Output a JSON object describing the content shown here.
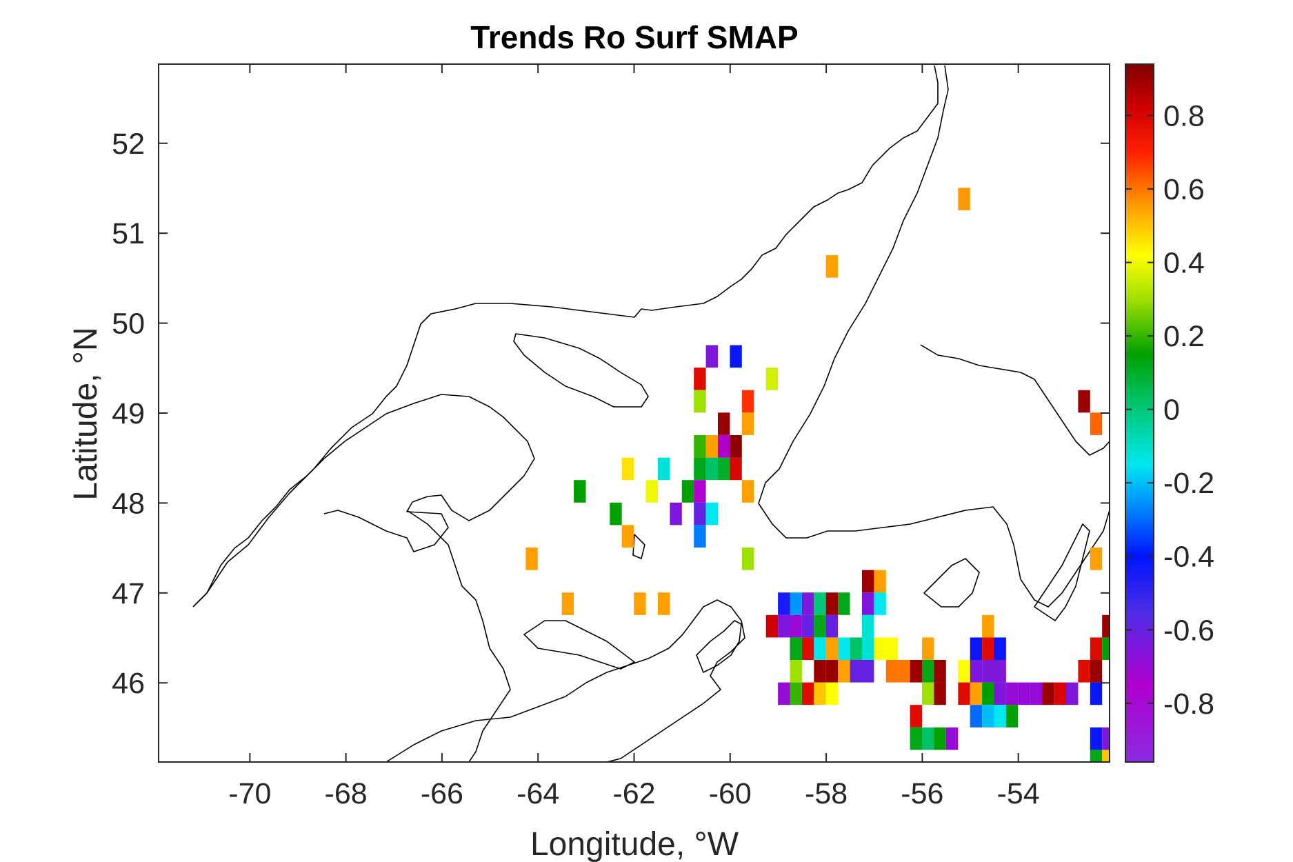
{
  "title": "Trends Ro Surf SMAP",
  "xlabel": "Longitude, °W",
  "ylabel": "Latitude, °N",
  "x_ticks": [
    "-70",
    "-68",
    "-66",
    "-64",
    "-62",
    "-60",
    "-58",
    "-56",
    "-54"
  ],
  "y_ticks": [
    "46",
    "47",
    "48",
    "49",
    "50",
    "51",
    "52"
  ],
  "colorbar_ticks": [
    "0.8",
    "0.6",
    "0.4",
    "0.2",
    "0",
    "-0.2",
    "-0.4",
    "-0.6",
    "-0.8"
  ],
  "chart_data": {
    "type": "heatmap",
    "title": "Trends Ro Surf SMAP",
    "xlabel": "Longitude, °W",
    "ylabel": "Latitude, °N",
    "xlim": [
      -71.9,
      -52.1
    ],
    "ylim": [
      45.12,
      52.88
    ],
    "grid": false,
    "colormap": "jet-like (purple to dark red)",
    "clim": [
      -0.96,
      0.94
    ],
    "colorbar_ticks": [
      0.8,
      0.6,
      0.4,
      0.2,
      0,
      -0.2,
      -0.4,
      -0.6,
      -0.8
    ],
    "colorbar": [
      {
        "v": -0.96,
        "c": "#8a2be2"
      },
      {
        "v": -0.75,
        "c": "#b000d0"
      },
      {
        "v": -0.55,
        "c": "#4b2ce6"
      },
      {
        "v": -0.4,
        "c": "#0014ff"
      },
      {
        "v": -0.25,
        "c": "#0096ff"
      },
      {
        "v": -0.15,
        "c": "#00e8ee"
      },
      {
        "v": 0.0,
        "c": "#00c878"
      },
      {
        "v": 0.15,
        "c": "#00a000"
      },
      {
        "v": 0.3,
        "c": "#a0e000"
      },
      {
        "v": 0.42,
        "c": "#ffff00"
      },
      {
        "v": 0.55,
        "c": "#ffa000"
      },
      {
        "v": 0.7,
        "c": "#ff2000"
      },
      {
        "v": 0.82,
        "c": "#d00000"
      },
      {
        "v": 0.94,
        "c": "#800000"
      }
    ],
    "cell_size_deg": {
      "lon": 0.25,
      "lat": 0.25
    },
    "cells": [
      {
        "lon": -55.13,
        "lat": 51.38,
        "v": 0.56
      },
      {
        "lon": -57.88,
        "lat": 50.63,
        "v": 0.55
      },
      {
        "lon": -60.38,
        "lat": 49.63,
        "v": -0.65
      },
      {
        "lon": -59.88,
        "lat": 49.63,
        "v": -0.42
      },
      {
        "lon": -60.63,
        "lat": 49.38,
        "v": 0.78
      },
      {
        "lon": -59.13,
        "lat": 49.38,
        "v": 0.36
      },
      {
        "lon": -60.63,
        "lat": 49.13,
        "v": 0.3
      },
      {
        "lon": -59.63,
        "lat": 49.13,
        "v": 0.68
      },
      {
        "lon": -60.13,
        "lat": 48.88,
        "v": 0.9
      },
      {
        "lon": -59.63,
        "lat": 48.88,
        "v": 0.55
      },
      {
        "lon": -60.63,
        "lat": 48.63,
        "v": 0.2
      },
      {
        "lon": -60.38,
        "lat": 48.63,
        "v": 0.55
      },
      {
        "lon": -60.13,
        "lat": 48.63,
        "v": -0.75
      },
      {
        "lon": -59.88,
        "lat": 48.63,
        "v": 0.92
      },
      {
        "lon": -60.63,
        "lat": 48.38,
        "v": 0.12
      },
      {
        "lon": -60.38,
        "lat": 48.38,
        "v": 0.02
      },
      {
        "lon": -60.13,
        "lat": 48.38,
        "v": 0.1
      },
      {
        "lon": -59.88,
        "lat": 48.38,
        "v": 0.8
      },
      {
        "lon": -62.13,
        "lat": 48.38,
        "v": 0.46
      },
      {
        "lon": -61.38,
        "lat": 48.38,
        "v": -0.12
      },
      {
        "lon": -63.13,
        "lat": 48.13,
        "v": 0.15
      },
      {
        "lon": -61.63,
        "lat": 48.13,
        "v": 0.4
      },
      {
        "lon": -60.88,
        "lat": 48.13,
        "v": 0.15
      },
      {
        "lon": -60.63,
        "lat": 48.13,
        "v": -0.75
      },
      {
        "lon": -59.63,
        "lat": 48.13,
        "v": 0.55
      },
      {
        "lon": -62.38,
        "lat": 47.88,
        "v": 0.15
      },
      {
        "lon": -61.13,
        "lat": 47.88,
        "v": -0.65
      },
      {
        "lon": -60.63,
        "lat": 47.88,
        "v": -0.6
      },
      {
        "lon": -60.38,
        "lat": 47.88,
        "v": -0.15
      },
      {
        "lon": -62.13,
        "lat": 47.63,
        "v": 0.55
      },
      {
        "lon": -60.63,
        "lat": 47.63,
        "v": -0.28
      },
      {
        "lon": -64.13,
        "lat": 47.38,
        "v": 0.55
      },
      {
        "lon": -59.63,
        "lat": 47.38,
        "v": 0.3
      },
      {
        "lon": -52.38,
        "lat": 47.38,
        "v": 0.55
      },
      {
        "lon": -57.13,
        "lat": 47.13,
        "v": 0.9
      },
      {
        "lon": -56.88,
        "lat": 47.13,
        "v": 0.55
      },
      {
        "lon": -52.63,
        "lat": 49.13,
        "v": 0.9
      },
      {
        "lon": -52.38,
        "lat": 48.88,
        "v": 0.62
      },
      {
        "lon": -63.38,
        "lat": 46.88,
        "v": 0.55
      },
      {
        "lon": -61.88,
        "lat": 46.88,
        "v": 0.55
      },
      {
        "lon": -61.38,
        "lat": 46.88,
        "v": 0.55
      },
      {
        "lon": -58.88,
        "lat": 46.88,
        "v": -0.45
      },
      {
        "lon": -58.63,
        "lat": 46.88,
        "v": -0.25
      },
      {
        "lon": -58.38,
        "lat": 46.88,
        "v": -0.65
      },
      {
        "lon": -58.13,
        "lat": 46.88,
        "v": 0.0
      },
      {
        "lon": -57.88,
        "lat": 46.88,
        "v": 0.9
      },
      {
        "lon": -57.63,
        "lat": 46.88,
        "v": 0.12
      },
      {
        "lon": -57.13,
        "lat": 46.88,
        "v": -0.65
      },
      {
        "lon": -56.88,
        "lat": 46.88,
        "v": -0.15
      },
      {
        "lon": -59.13,
        "lat": 46.63,
        "v": 0.82
      },
      {
        "lon": -58.88,
        "lat": 46.63,
        "v": -0.65
      },
      {
        "lon": -58.63,
        "lat": 46.63,
        "v": -0.7
      },
      {
        "lon": -58.38,
        "lat": 46.63,
        "v": -0.6
      },
      {
        "lon": -58.13,
        "lat": 46.63,
        "v": 0.12
      },
      {
        "lon": -57.88,
        "lat": 46.63,
        "v": -0.6
      },
      {
        "lon": -57.13,
        "lat": 46.63,
        "v": -0.12
      },
      {
        "lon": -54.63,
        "lat": 46.63,
        "v": 0.55
      },
      {
        "lon": -52.13,
        "lat": 46.63,
        "v": 0.9
      },
      {
        "lon": -58.63,
        "lat": 46.38,
        "v": 0.12
      },
      {
        "lon": -58.38,
        "lat": 46.38,
        "v": 0.78
      },
      {
        "lon": -58.13,
        "lat": 46.38,
        "v": -0.15
      },
      {
        "lon": -57.88,
        "lat": 46.38,
        "v": 0.55
      },
      {
        "lon": -57.63,
        "lat": 46.38,
        "v": -0.15
      },
      {
        "lon": -57.38,
        "lat": 46.38,
        "v": 0.02
      },
      {
        "lon": -57.13,
        "lat": 46.38,
        "v": -0.12
      },
      {
        "lon": -56.88,
        "lat": 46.38,
        "v": 0.42
      },
      {
        "lon": -56.63,
        "lat": 46.38,
        "v": 0.42
      },
      {
        "lon": -55.88,
        "lat": 46.38,
        "v": 0.55
      },
      {
        "lon": -54.88,
        "lat": 46.38,
        "v": -0.42
      },
      {
        "lon": -54.63,
        "lat": 46.38,
        "v": 0.78
      },
      {
        "lon": -54.38,
        "lat": 46.38,
        "v": -0.42
      },
      {
        "lon": -52.38,
        "lat": 46.38,
        "v": 0.78
      },
      {
        "lon": -52.13,
        "lat": 46.38,
        "v": 0.15
      },
      {
        "lon": -58.63,
        "lat": 46.13,
        "v": 0.3
      },
      {
        "lon": -58.13,
        "lat": 46.13,
        "v": 0.9
      },
      {
        "lon": -57.88,
        "lat": 46.13,
        "v": 0.9
      },
      {
        "lon": -57.63,
        "lat": 46.13,
        "v": 0.55
      },
      {
        "lon": -57.38,
        "lat": 46.13,
        "v": -0.6
      },
      {
        "lon": -57.13,
        "lat": 46.13,
        "v": -0.6
      },
      {
        "lon": -56.63,
        "lat": 46.13,
        "v": 0.6
      },
      {
        "lon": -56.38,
        "lat": 46.13,
        "v": 0.6
      },
      {
        "lon": -56.13,
        "lat": 46.13,
        "v": 0.9
      },
      {
        "lon": -55.88,
        "lat": 46.13,
        "v": 0.12
      },
      {
        "lon": -55.63,
        "lat": 46.13,
        "v": 0.9
      },
      {
        "lon": -55.13,
        "lat": 46.13,
        "v": 0.42
      },
      {
        "lon": -54.88,
        "lat": 46.13,
        "v": -0.65
      },
      {
        "lon": -54.63,
        "lat": 46.13,
        "v": -0.65
      },
      {
        "lon": -54.38,
        "lat": 46.13,
        "v": -0.65
      },
      {
        "lon": -52.63,
        "lat": 46.13,
        "v": 0.78
      },
      {
        "lon": -52.38,
        "lat": 46.13,
        "v": 0.9
      },
      {
        "lon": -58.88,
        "lat": 45.88,
        "v": -0.7
      },
      {
        "lon": -58.63,
        "lat": 45.88,
        "v": 0.2
      },
      {
        "lon": -58.38,
        "lat": 45.88,
        "v": 0.78
      },
      {
        "lon": -58.13,
        "lat": 45.88,
        "v": 0.5
      },
      {
        "lon": -57.88,
        "lat": 45.88,
        "v": 0.42
      },
      {
        "lon": -55.88,
        "lat": 45.88,
        "v": 0.3
      },
      {
        "lon": -55.63,
        "lat": 45.88,
        "v": 0.9
      },
      {
        "lon": -55.13,
        "lat": 45.88,
        "v": 0.78
      },
      {
        "lon": -54.88,
        "lat": 45.88,
        "v": 0.55
      },
      {
        "lon": -54.63,
        "lat": 45.88,
        "v": 0.15
      },
      {
        "lon": -54.38,
        "lat": 45.88,
        "v": -0.65
      },
      {
        "lon": -54.13,
        "lat": 45.88,
        "v": -0.7
      },
      {
        "lon": -53.88,
        "lat": 45.88,
        "v": -0.7
      },
      {
        "lon": -53.63,
        "lat": 45.88,
        "v": -0.7
      },
      {
        "lon": -53.38,
        "lat": 45.88,
        "v": 0.9
      },
      {
        "lon": -53.13,
        "lat": 45.88,
        "v": 0.8
      },
      {
        "lon": -52.88,
        "lat": 45.88,
        "v": -0.65
      },
      {
        "lon": -52.38,
        "lat": 45.88,
        "v": -0.42
      },
      {
        "lon": -56.13,
        "lat": 45.63,
        "v": 0.78
      },
      {
        "lon": -54.88,
        "lat": 45.63,
        "v": -0.3
      },
      {
        "lon": -54.63,
        "lat": 45.63,
        "v": -0.2
      },
      {
        "lon": -54.38,
        "lat": 45.63,
        "v": -0.15
      },
      {
        "lon": -54.13,
        "lat": 45.63,
        "v": 0.15
      },
      {
        "lon": -56.13,
        "lat": 45.38,
        "v": 0.12
      },
      {
        "lon": -55.88,
        "lat": 45.38,
        "v": 0.02
      },
      {
        "lon": -55.63,
        "lat": 45.38,
        "v": 0.15
      },
      {
        "lon": -55.38,
        "lat": 45.38,
        "v": -0.7
      },
      {
        "lon": -52.38,
        "lat": 45.38,
        "v": -0.42
      },
      {
        "lon": -52.13,
        "lat": 45.38,
        "v": -0.65
      },
      {
        "lon": -52.38,
        "lat": 45.13,
        "v": 0.12
      },
      {
        "lon": -52.13,
        "lat": 45.13,
        "v": 0.5
      }
    ]
  }
}
